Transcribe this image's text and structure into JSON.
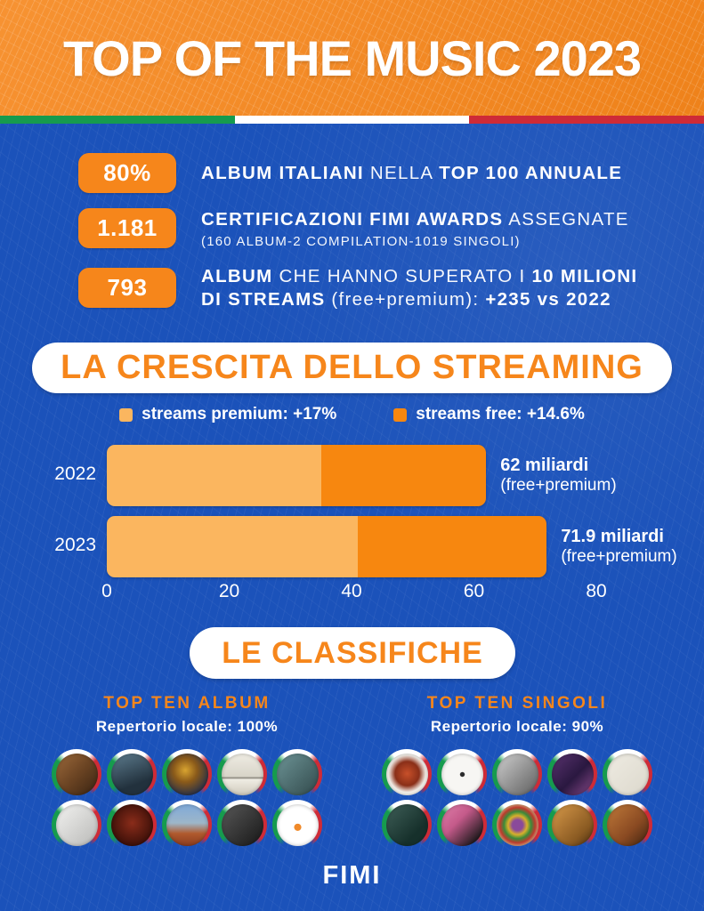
{
  "header": {
    "title": "TOP OF THE MUSIC 2023"
  },
  "flag": {
    "green": "#169B4E",
    "white": "#FFFFFF",
    "red": "#CE2B37"
  },
  "colors": {
    "background_blue": "#1B52BA",
    "accent_orange": "#F6861B",
    "premium_light_orange": "#FBB65F",
    "free_dark_orange": "#F7870F",
    "text_white": "#FFFFFF"
  },
  "stats": [
    {
      "badge": "80%",
      "line1": {
        "b1": "ALBUM ITALIANI",
        "r1": " NELLA ",
        "b2": "TOP 100 ANNUALE"
      }
    },
    {
      "badge": "1.181",
      "line1": {
        "b1": "CERTIFICAZIONI FIMI AWARDS",
        "r1": " ASSEGNATE"
      },
      "line2": "(160 ALBUM-2 COMPILATION-1019 SINGOLI)"
    },
    {
      "badge": "793",
      "line1": {
        "b1": "ALBUM",
        "r1": " CHE HANNO SUPERATO I ",
        "b2": "10 MILIONI"
      },
      "line2seg": {
        "b1": "DI STREAMS",
        "r1": " (free+premium): ",
        "b2": "+235 vs 2022"
      }
    }
  ],
  "chart_data": {
    "type": "bar",
    "orientation": "horizontal",
    "stacked": true,
    "title": "LA CRESCITA DELLO STREAMING",
    "categories": [
      "2022",
      "2023"
    ],
    "series": [
      {
        "name": "streams premium: +17%",
        "color": "#FBB65F",
        "values": [
          35,
          41
        ]
      },
      {
        "name": "streams free: +14.6%",
        "color": "#F7870F",
        "values": [
          27,
          30.9
        ]
      }
    ],
    "totals": [
      62,
      71.9
    ],
    "bar_labels": [
      {
        "line1": "62 miliardi",
        "line2": "(free+premium)"
      },
      {
        "line1": "71.9 miliardi",
        "line2": "(free+premium)"
      }
    ],
    "xlim": [
      0,
      80
    ],
    "xticks": [
      "0",
      "20",
      "40",
      "60",
      "80"
    ],
    "legend_position": "top",
    "grid": false
  },
  "classifiche": {
    "title": "LE CLASSIFICHE",
    "columns": [
      {
        "title": "TOP TEN ALBUM",
        "subtitle": "Repertorio locale: 100%",
        "covers": [
          {
            "name": "album-cover-1",
            "bg": "linear-gradient(135deg,#9c6a3c 0%,#6b4423 50%,#382312 100%)"
          },
          {
            "name": "album-cover-2",
            "bg": "linear-gradient(160deg,#5d7c8e 0%,#22313d 70%)"
          },
          {
            "name": "album-cover-3",
            "bg": "radial-gradient(circle at 45% 40%,#d9a430 0%,#8a5a1a 35%,#1c2b4e 80%)"
          },
          {
            "name": "album-cover-4",
            "bg": "linear-gradient(180deg,#efece3 0%,#d8d4c8 55%,#8a867c 58%,#efece3 62%,#cfcabc 100%)"
          },
          {
            "name": "album-cover-5",
            "bg": "linear-gradient(135deg,#6d9496 0%,#31494b 100%)"
          },
          {
            "name": "album-cover-6",
            "bg": "linear-gradient(135deg,#f2f2f0 0%,#b9b9b7 100%)"
          },
          {
            "name": "album-cover-7",
            "bg": "radial-gradient(circle at 50% 45%,#8a2c1a 0%,#3a0f08 75%)"
          },
          {
            "name": "album-cover-8",
            "bg": "linear-gradient(180deg,#7fa9d9 0%,#9db6c9 45%,#b05a2e 70%,#8a3c1e 100%)"
          },
          {
            "name": "album-cover-9",
            "bg": "linear-gradient(135deg,#585858 0%,#171717 100%)"
          },
          {
            "name": "album-cover-10",
            "bg": "radial-gradient(circle at 50% 55%,#f08a2a 0%,#f08a2a 11%,#ffffff 12%)"
          }
        ]
      },
      {
        "title": "TOP TEN SINGOLI",
        "subtitle": "Repertorio locale: 90%",
        "covers": [
          {
            "name": "single-cover-1",
            "bg": "radial-gradient(circle at 50% 48%,#c8502a 0%,#8a2f18 40%,#f5f2ec 62%)"
          },
          {
            "name": "single-cover-2",
            "bg": "radial-gradient(circle at 50% 50%,#2b2b2b 0%,#2b2b2b 7%,#f7f6f3 9%)"
          },
          {
            "name": "single-cover-3",
            "bg": "linear-gradient(135deg,#cfcfcf 0%,#8a8a8a 60%,#5e5e5e 100%)"
          },
          {
            "name": "single-cover-4",
            "bg": "linear-gradient(135deg,#5a3370 0%,#2a1840 55%,#8a4a8a 100%)"
          },
          {
            "name": "single-cover-5",
            "bg": "linear-gradient(135deg,#eeebe2 0%,#dcd8cc 100%)"
          },
          {
            "name": "single-cover-6",
            "bg": "linear-gradient(135deg,#3f5f58 0%,#16302b 70%)"
          },
          {
            "name": "single-cover-7",
            "bg": "linear-gradient(135deg,#e081ab 0%,#c45a8a 40%,#1f1a1d 85%)"
          },
          {
            "name": "single-cover-8",
            "bg": "radial-gradient(circle at 50% 50%,#8a4a9a 0%,#8a4a9a 18%,#d8b02a 32%,#3a8a3a 46%,#c23b2e 60%,#e8d8a0 76%,#caa24a 100%)"
          },
          {
            "name": "single-cover-9",
            "bg": "linear-gradient(135deg,#d89a4a 0%,#8a5a22 70%,#4a2f10 100%)"
          },
          {
            "name": "single-cover-10",
            "bg": "linear-gradient(135deg,#c07a3a 0%,#8a4a22 60%,#3f2410 100%)"
          }
        ]
      }
    ]
  },
  "footer": {
    "logo_text": "FIMI"
  }
}
